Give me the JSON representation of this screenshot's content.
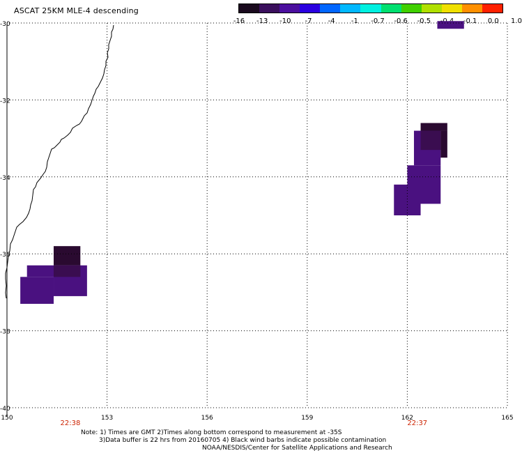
{
  "title": "ASCAT 25KM MLE-4 descending",
  "colorbar": {
    "labels": [
      "-16",
      "-13",
      "-10",
      "-7",
      "-4",
      "-1",
      "-0.7",
      "-0.6",
      "-0.5",
      "-0.4",
      "-0.1",
      "0.0",
      "1.0"
    ],
    "colors": [
      "#1a0a1e",
      "#3a0f5c",
      "#4b0f9e",
      "#2a00e0",
      "#0066ff",
      "#00b8ff",
      "#00f0e0",
      "#00e070",
      "#40d000",
      "#b0e000",
      "#f0e000",
      "#ff9000",
      "#ff2000"
    ]
  },
  "map": {
    "lon_range": [
      150,
      165
    ],
    "lat_range": [
      -40,
      -30
    ],
    "lon_ticks": [
      "150",
      "153",
      "156",
      "159",
      "162",
      "165"
    ],
    "lat_ticks": [
      "-30",
      "-32",
      "-34",
      "-36",
      "-38",
      "-40"
    ],
    "pass_times": [
      {
        "label": "22:38",
        "lon": 151.9
      },
      {
        "label": "22:37",
        "lon": 162.3
      }
    ],
    "cells": [
      {
        "lon0": 150.4,
        "lon1": 151.4,
        "lat0": -37.3,
        "lat1": -36.6,
        "color": "#4a1180"
      },
      {
        "lon0": 150.6,
        "lon1": 151.4,
        "lat0": -36.6,
        "lat1": -36.3,
        "color": "#4a1180"
      },
      {
        "lon0": 151.4,
        "lon1": 152.4,
        "lat0": -37.1,
        "lat1": -36.3,
        "color": "#4a1180"
      },
      {
        "lon0": 151.4,
        "lon1": 152.2,
        "lat0": -36.3,
        "lat1": -35.8,
        "color": "#2a0a30"
      },
      {
        "lon0": 151.4,
        "lon1": 152.2,
        "lat0": -36.6,
        "lat1": -36.3,
        "color": "#3a0d50"
      },
      {
        "lon0": 161.6,
        "lon1": 162.4,
        "lat0": -35.0,
        "lat1": -34.2,
        "color": "#4a1180"
      },
      {
        "lon0": 162.0,
        "lon1": 163.0,
        "lat0": -34.7,
        "lat1": -33.7,
        "color": "#4a1180"
      },
      {
        "lon0": 162.2,
        "lon1": 163.0,
        "lat0": -33.7,
        "lat1": -32.8,
        "color": "#4a1180"
      },
      {
        "lon0": 162.4,
        "lon1": 163.0,
        "lat0": -33.3,
        "lat1": -32.8,
        "color": "#3a0d50"
      },
      {
        "lon0": 162.4,
        "lon1": 163.2,
        "lat0": -32.8,
        "lat1": -32.6,
        "color": "#2a0a30"
      },
      {
        "lon0": 163.0,
        "lon1": 163.2,
        "lat0": -33.5,
        "lat1": -32.8,
        "color": "#2a0a30"
      },
      {
        "lon0": 162.9,
        "lon1": 163.7,
        "lat0": -30.15,
        "lat1": -29.95,
        "color": "#4a1180"
      }
    ]
  },
  "notes": {
    "line1": "Note: 1) Times are GMT 2)Times along bottom correspond to measurement at -35S",
    "line2": "3)Data buffer is 22 hrs from 20160705 4) Black wind barbs indicate possible contamination",
    "line3": "NOAA/NESDIS/Center for Satellite Applications and Research"
  }
}
